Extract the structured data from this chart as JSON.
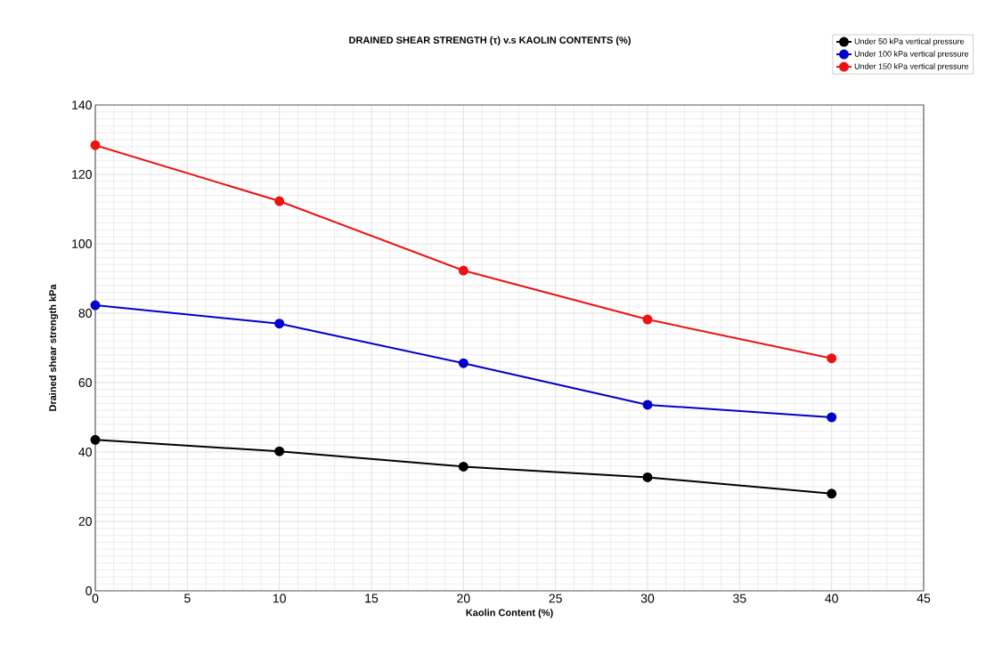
{
  "chart_data": {
    "type": "line",
    "title": "DRAINED SHEAR STRENGTH (τ) v.s KAOLIN CONTENTS (%)",
    "xlabel": "Kaolin Content (%)",
    "ylabel": "Drained shear strength     kPa",
    "x": [
      0,
      10,
      20,
      30,
      40
    ],
    "series": [
      {
        "name": "Under 50 kPa vertical pressure",
        "color": "#000000",
        "values": [
          43.5,
          40.2,
          35.8,
          32.7,
          28
        ]
      },
      {
        "name": "Under 100 kPa vertical pressure",
        "color": "#0000cc",
        "values": [
          82.3,
          77,
          65.6,
          53.6,
          50
        ]
      },
      {
        "name": "Under 150 kPa vertical pressure",
        "color": "#ee1111",
        "values": [
          128.4,
          112.3,
          92.3,
          78.2,
          67
        ]
      }
    ],
    "xlim": [
      0,
      45
    ],
    "ylim": [
      0,
      140
    ],
    "xticks": [
      0,
      5,
      10,
      15,
      20,
      25,
      30,
      35,
      40,
      45
    ],
    "yticks": [
      0,
      20,
      40,
      60,
      80,
      100,
      120,
      140
    ],
    "grid": true,
    "legend": "top right",
    "marker": "circle",
    "line_style": "solid"
  }
}
